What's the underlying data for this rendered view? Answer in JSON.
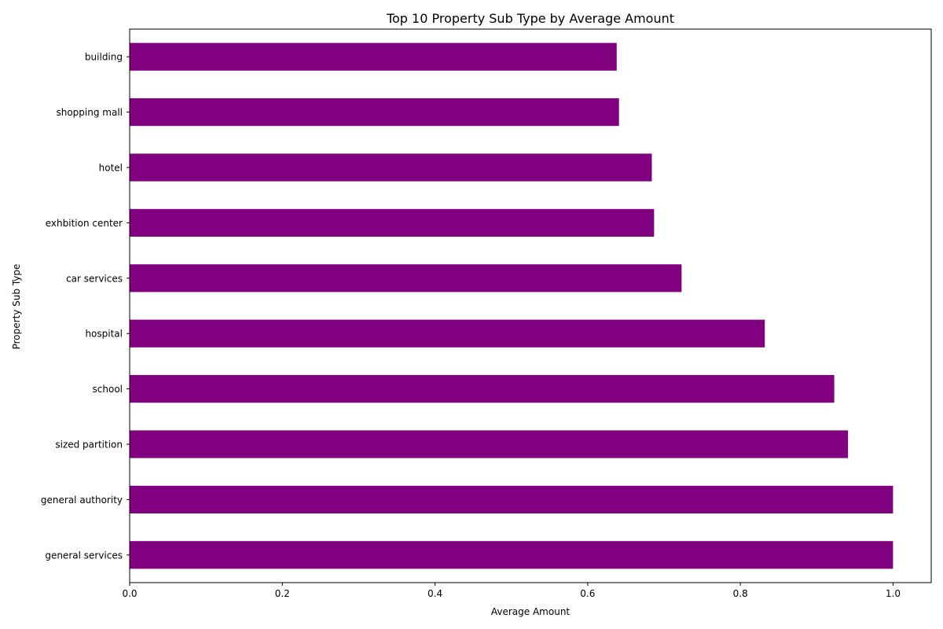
{
  "chart_data": {
    "type": "bar",
    "orientation": "horizontal",
    "title": "Top 10 Property Sub Type by Average Amount",
    "xlabel": "Average Amount",
    "ylabel": "Property Sub Type",
    "categories": [
      "general services",
      "general authority",
      "sized partition",
      "school",
      "hospital",
      "car services",
      "exhbition center",
      "hotel",
      "shopping mall",
      "building"
    ],
    "values": [
      1.0,
      1.0,
      0.941,
      0.923,
      0.832,
      0.723,
      0.687,
      0.684,
      0.641,
      0.638
    ],
    "xlim": [
      0,
      1.05
    ],
    "xticks": [
      "0.0",
      "0.2",
      "0.4",
      "0.6",
      "0.8",
      "1.0"
    ],
    "grid": false,
    "bar_color": "#800080"
  }
}
